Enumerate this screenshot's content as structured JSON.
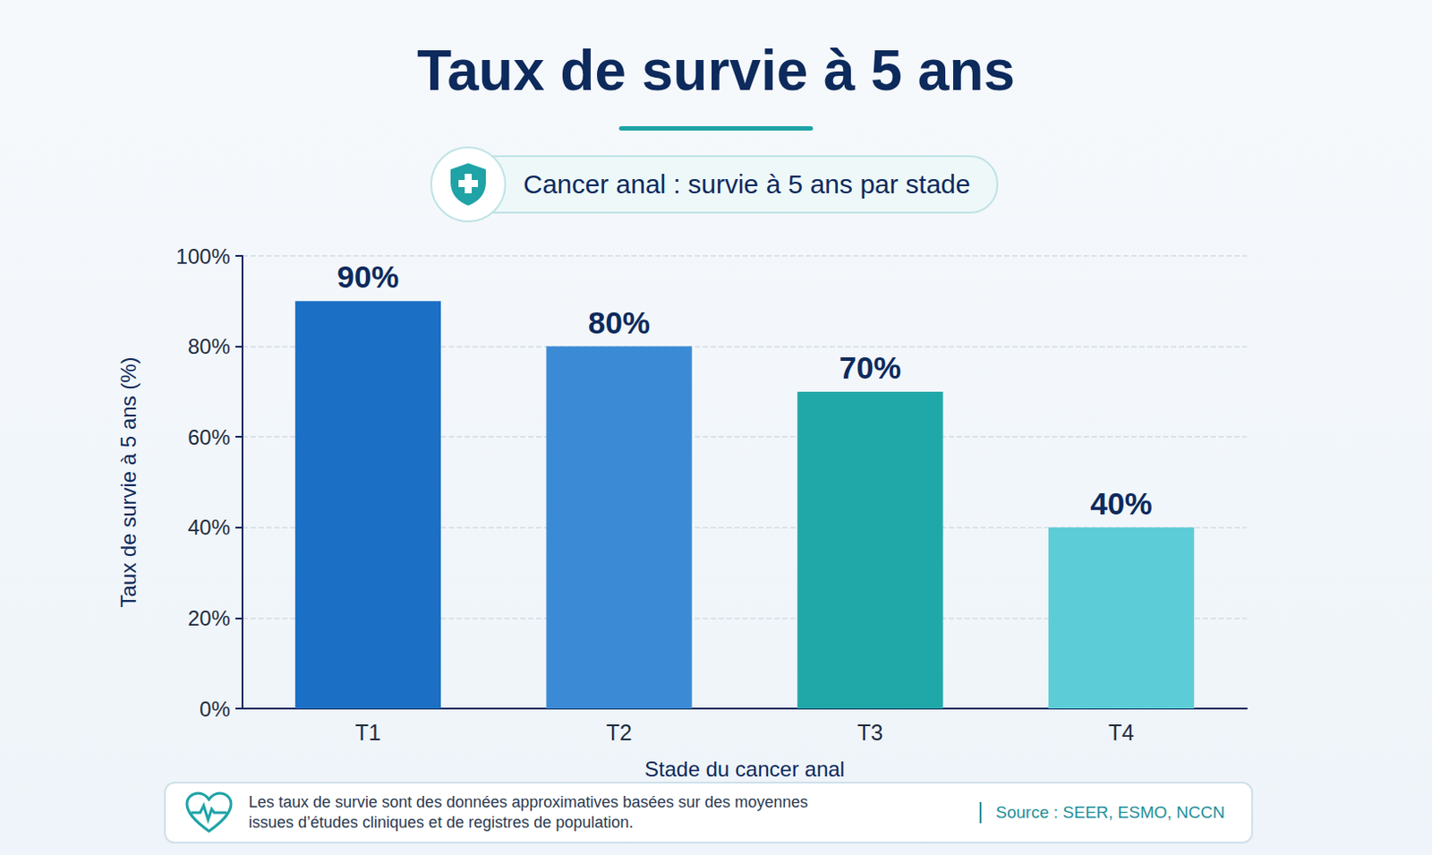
{
  "chart_data": {
    "type": "bar",
    "title": "Taux de survie à 5 ans",
    "subtitle": "Cancer anal : survie à 5 ans par stade",
    "xlabel": "Stade du cancer anal",
    "ylabel": "Taux de survie à 5 ans (%)",
    "categories": [
      "T1",
      "T2",
      "T3",
      "T4"
    ],
    "values": [
      90,
      80,
      70,
      40
    ],
    "value_labels": [
      "90%",
      "80%",
      "70%",
      "40%"
    ],
    "colors": [
      "#1b6fc4",
      "#3a8ad6",
      "#20a8a8",
      "#5ccdd6"
    ],
    "ylim": [
      0,
      100
    ],
    "yticks": [
      {
        "value": 0,
        "label": "0%"
      },
      {
        "value": 20,
        "label": "20%"
      },
      {
        "value": 40,
        "label": "40%"
      },
      {
        "value": 60,
        "label": "60%"
      },
      {
        "value": 80,
        "label": "80%"
      },
      {
        "value": 100,
        "label": "100%"
      }
    ],
    "grid": true,
    "data_labels": true,
    "notes": [
      "Les taux de survie sont des données approximatives basées sur des moyennes",
      "issues d’études cliniques et de registres de population."
    ],
    "source": "Source : SEER, ESMO, NCCN"
  }
}
